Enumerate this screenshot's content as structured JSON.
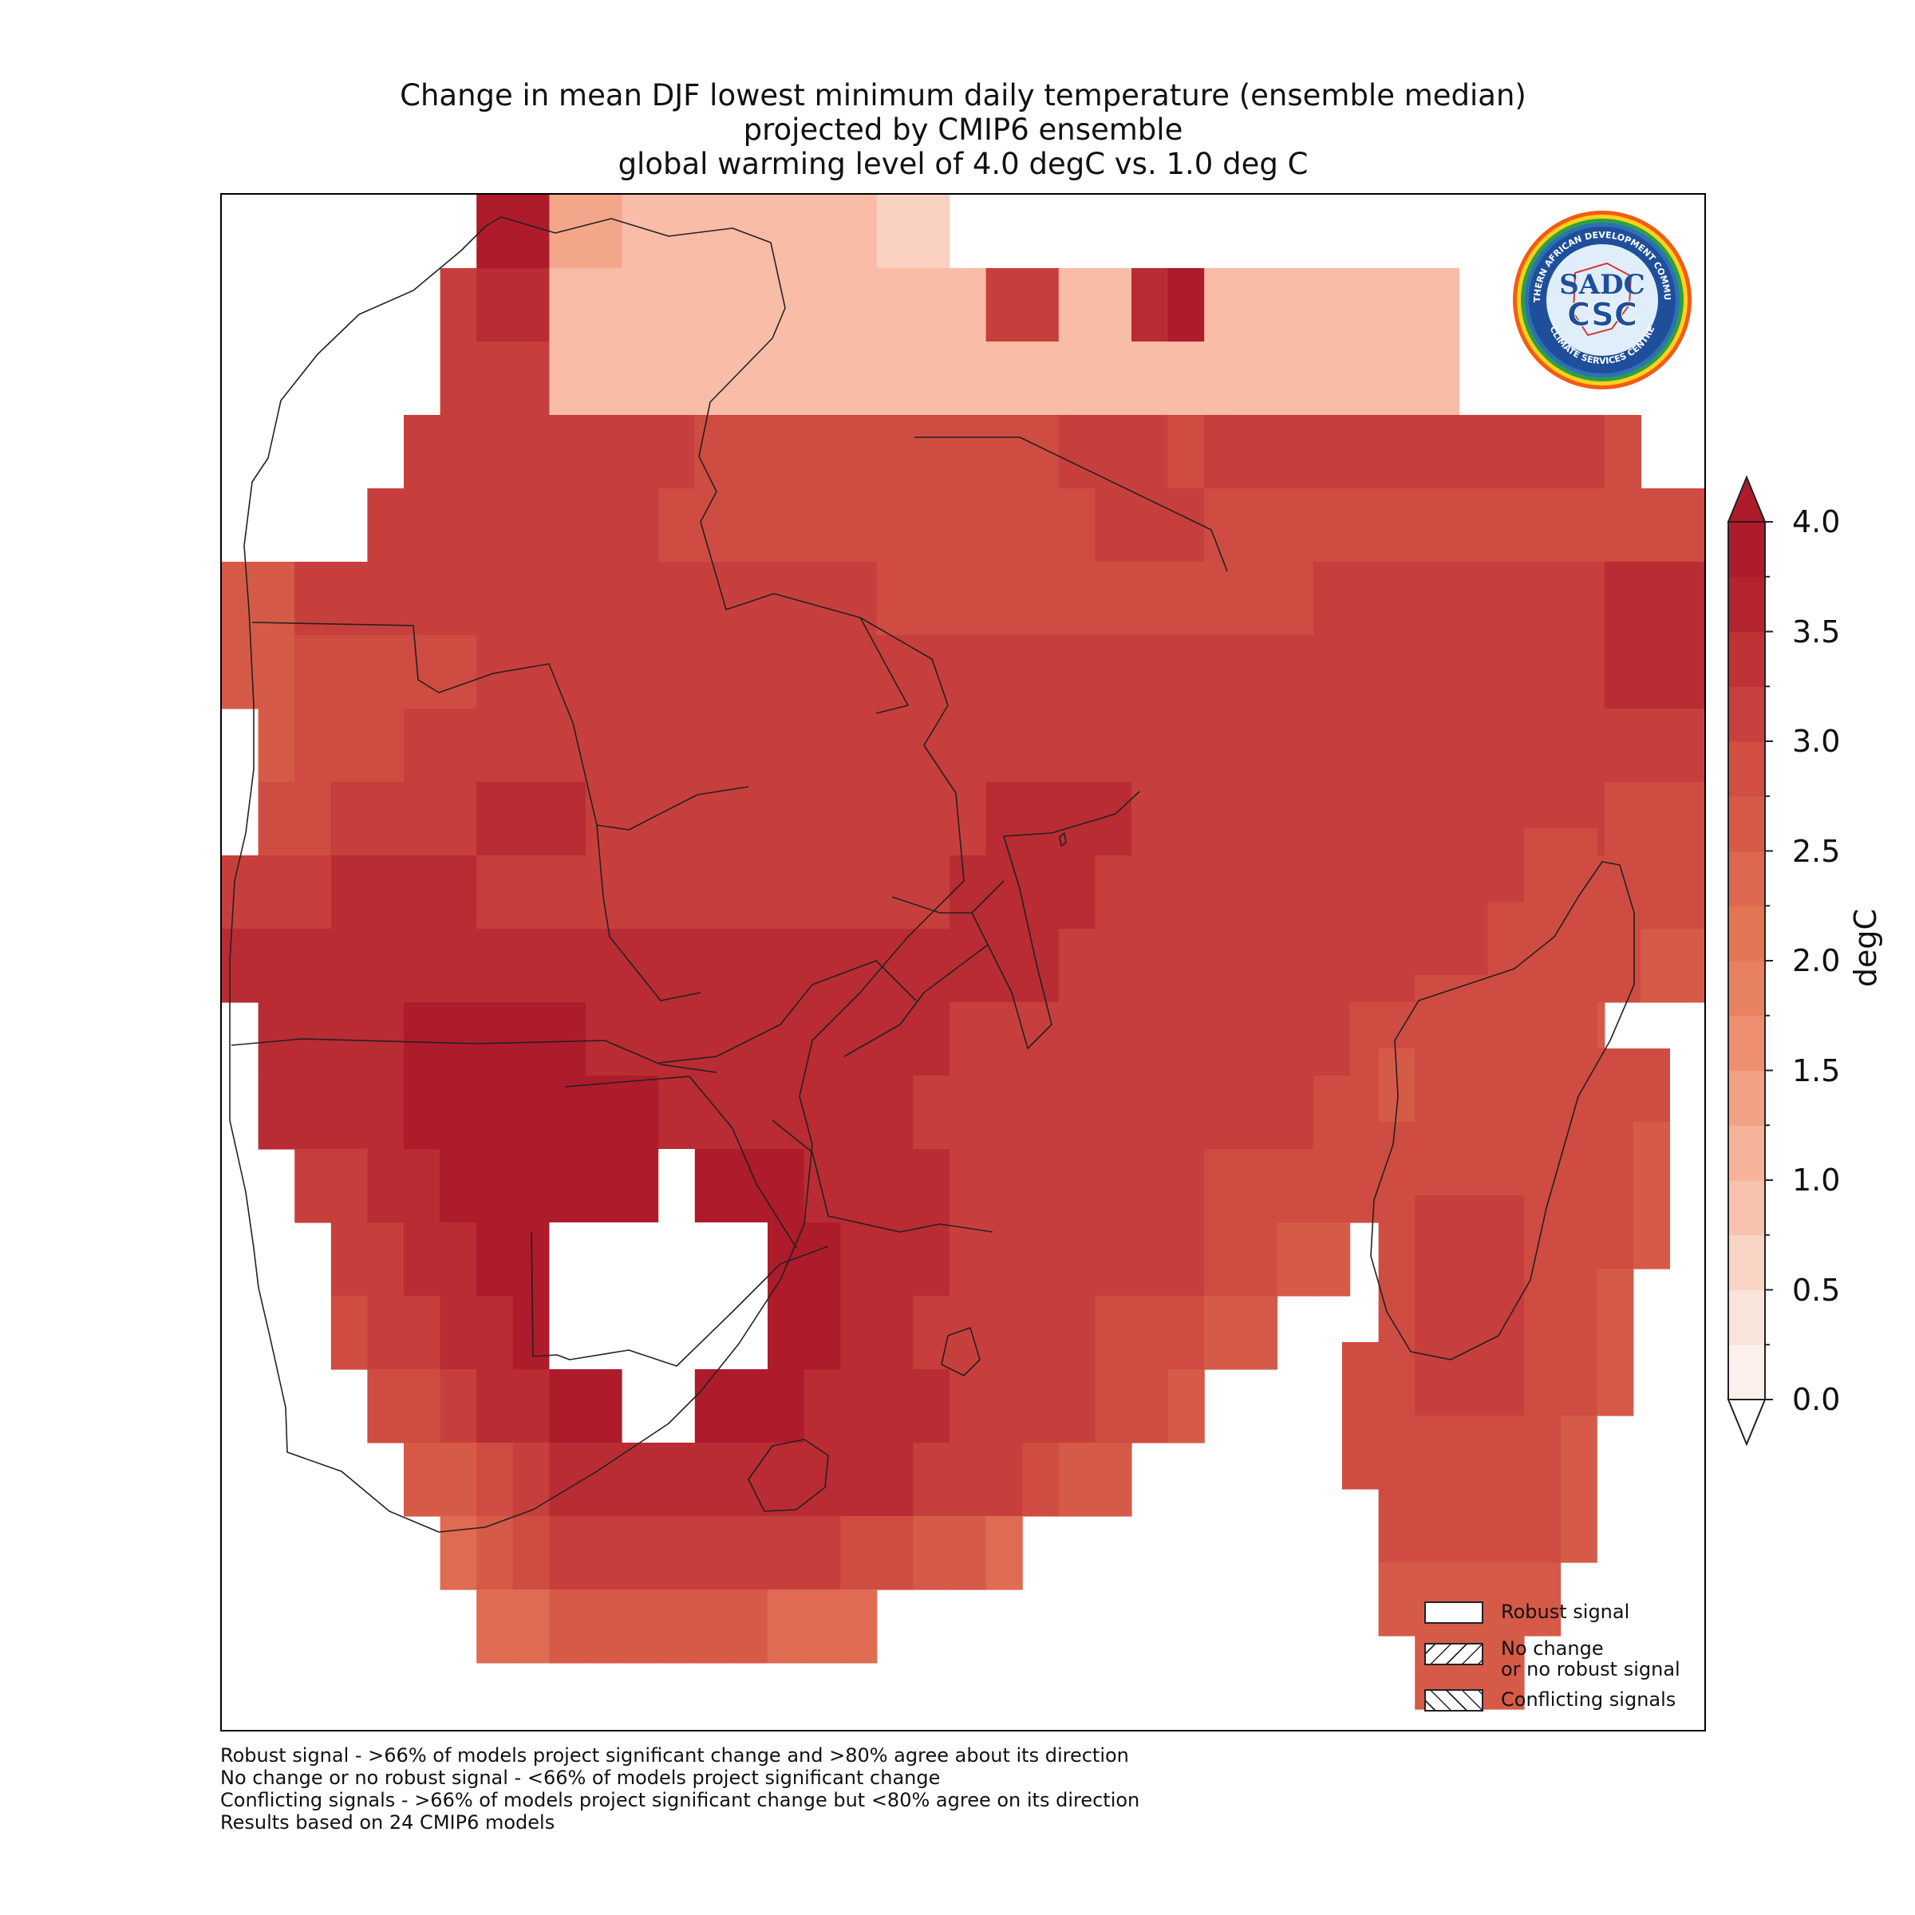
{
  "title_lines": [
    "Change in mean DJF lowest minimum daily temperature (ensemble median)",
    "projected by CMIP6 ensemble",
    "global warming level of 4.0 degC vs. 1.0 deg C"
  ],
  "logo": {
    "text_top": "SOUTHERN AFRICAN DEVELOPMENT COMMUNITY",
    "text_bottom": "CLIMATE SERVICES CENTRE",
    "monogram_1": "SADC",
    "monogram_2": "CSC"
  },
  "colorbar": {
    "unit": "degC",
    "min": 0.0,
    "max": 4.0,
    "extend": "both",
    "tick_labels": [
      "4.0",
      "3.5",
      "3.0",
      "2.5",
      "2.0",
      "1.5",
      "1.0",
      "0.5",
      "0.0"
    ],
    "colors": [
      "#fbf0ec",
      "#fbe3da",
      "#fad1c1",
      "#f8bca7",
      "#f4a68b",
      "#ee8e71",
      "#e67b60",
      "#df6b53",
      "#d65a48",
      "#cf4c42",
      "#c73f3c",
      "#b92c33",
      "#ae1b2b",
      "#ffffff"
    ]
  },
  "legend": {
    "items": [
      {
        "label": "Robust signal",
        "style": "empty"
      },
      {
        "label": "No change\nor no robust signal",
        "style": "hatch-forward"
      },
      {
        "label": "Conflicting signals",
        "style": "hatch-back"
      }
    ]
  },
  "footnotes": [
    "Robust signal - >66% of models project significant change and >80% agree about its direction",
    "No change or no robust signal - <66% of models project significant change",
    "Conflicting signals - >66% of models project significant change but <80% agree on its direction",
    "Results based on 24 CMIP6 models"
  ],
  "map_data": {
    "variable": "Change in mean DJF lowest minimum daily temperature (ensemble median)",
    "units": "degC",
    "region": "Southern Africa (SADC)",
    "grid_rows": [
      [
        7,
        [
          12,
          12,
          4,
          4,
          3,
          3,
          3,
          3,
          3,
          3,
          3,
          2,
          2
        ]
      ],
      [
        6,
        [
          10,
          11,
          11,
          3,
          3,
          3,
          3,
          3,
          3,
          3,
          3,
          3,
          3,
          3,
          3,
          10,
          10,
          3,
          3,
          11,
          12,
          3,
          3,
          3,
          3,
          3,
          3,
          3
        ]
      ],
      [
        6,
        [
          10,
          10,
          10,
          3,
          3,
          3,
          3,
          3,
          3,
          3,
          3,
          3,
          3,
          3,
          3,
          3,
          3,
          3,
          3,
          3,
          3,
          3,
          3,
          3,
          3,
          3,
          3,
          3
        ]
      ],
      [
        5,
        [
          10,
          10,
          10,
          10,
          10,
          10,
          10,
          10,
          9,
          9,
          9,
          9,
          9,
          9,
          9,
          9,
          9,
          9,
          10,
          10,
          10,
          9,
          10,
          10,
          10,
          10,
          10,
          10,
          10,
          10,
          10,
          10,
          10,
          9
        ]
      ],
      [
        4,
        [
          10,
          10,
          10,
          10,
          10,
          10,
          10,
          10,
          9,
          9,
          9,
          9,
          9,
          9,
          9,
          9,
          9,
          9,
          9,
          9,
          10,
          10,
          10,
          9,
          9,
          9,
          9,
          9,
          9,
          9,
          9,
          9,
          9,
          9,
          9,
          9,
          9,
          9,
          9,
          9
        ]
      ],
      [
        0,
        [
          8,
          8,
          10,
          10,
          10,
          10,
          10,
          10,
          10,
          10,
          10,
          10,
          10,
          10,
          10,
          10,
          10,
          10,
          9,
          9,
          9,
          9,
          9,
          9,
          9,
          9,
          9,
          9,
          9,
          9,
          10,
          10,
          10,
          10,
          10,
          10,
          10,
          10,
          11,
          11,
          11,
          11,
          9,
          8
        ]
      ],
      [
        0,
        [
          8,
          8,
          9,
          9,
          9,
          9,
          9,
          10,
          10,
          10,
          10,
          10,
          10,
          10,
          10,
          10,
          10,
          10,
          10,
          10,
          10,
          10,
          10,
          10,
          10,
          10,
          10,
          10,
          10,
          10,
          10,
          10,
          10,
          10,
          10,
          10,
          10,
          10,
          11,
          11,
          11,
          11,
          9,
          9,
          9,
          8
        ]
      ],
      [
        1,
        [
          8,
          9,
          9,
          9,
          10,
          10,
          10,
          10,
          10,
          10,
          10,
          10,
          10,
          10,
          10,
          10,
          10,
          10,
          10,
          10,
          10,
          10,
          10,
          10,
          10,
          10,
          10,
          10,
          10,
          10,
          10,
          10,
          10,
          10,
          10,
          10,
          10,
          10,
          10,
          10,
          9,
          9,
          9,
          8,
          8
        ]
      ],
      [
        1,
        [
          9,
          9,
          10,
          10,
          10,
          10,
          11,
          11,
          11,
          10,
          10,
          10,
          10,
          10,
          10,
          10,
          10,
          10,
          10,
          10,
          11,
          11,
          11,
          11,
          10,
          10,
          10,
          10,
          10,
          10,
          10,
          10,
          10,
          10,
          10,
          10,
          10,
          9,
          9,
          9,
          8,
          8,
          8
        ]
      ],
      [
        0,
        [
          10,
          10,
          10,
          11,
          11,
          11,
          11,
          10,
          10,
          10,
          10,
          10,
          10,
          10,
          10,
          10,
          10,
          10,
          10,
          10,
          11,
          11,
          11,
          11,
          10,
          10,
          10,
          10,
          10,
          10,
          10,
          10,
          10,
          10,
          10,
          10,
          10,
          9,
          9,
          9,
          9,
          8,
          8,
          8
        ]
      ],
      [
        0,
        [
          11,
          11,
          11,
          11,
          11,
          11,
          11,
          11,
          11,
          11,
          11,
          11,
          11,
          11,
          11,
          11,
          11,
          11,
          11,
          11,
          11,
          11,
          11,
          10,
          10,
          10,
          10,
          10,
          10,
          10,
          10,
          10,
          10,
          10,
          10,
          10,
          9,
          9,
          9,
          8,
          8,
          8,
          8
        ]
      ],
      [
        1,
        [
          11,
          11,
          11,
          11,
          12,
          12,
          12,
          12,
          12,
          11,
          11,
          11,
          11,
          11,
          11,
          11,
          11,
          11,
          11,
          10,
          10,
          10,
          10,
          10,
          10,
          10,
          10,
          10,
          10,
          10,
          9,
          9,
          9,
          9,
          8,
          8,
          8
        ]
      ],
      [
        1,
        [
          11,
          11,
          11,
          11,
          12,
          12,
          12,
          12,
          12,
          12,
          12,
          11,
          11,
          11,
          11,
          11,
          11,
          11,
          10,
          10,
          10,
          10,
          10,
          10,
          10,
          10,
          10,
          10,
          10,
          9,
          9,
          9,
          8,
          8
        ]
      ],
      [
        2,
        [
          10,
          10,
          11,
          11,
          12,
          12,
          12,
          12,
          12,
          12,
          13,
          12,
          12,
          12,
          11,
          11,
          11,
          11,
          10,
          10,
          10,
          10,
          10,
          10,
          10,
          9,
          9,
          9,
          9,
          9,
          8,
          8
        ]
      ],
      [
        3,
        [
          10,
          10,
          11,
          11,
          12,
          12,
          13,
          13,
          13,
          13,
          13,
          13,
          12,
          12,
          11,
          11,
          11,
          10,
          10,
          10,
          10,
          10,
          10,
          10,
          9,
          9,
          8,
          8
        ]
      ],
      [
        3,
        [
          9,
          10,
          10,
          11,
          11,
          12,
          13,
          13,
          13,
          13,
          13,
          13,
          12,
          12,
          11,
          11,
          10,
          10,
          10,
          10,
          10,
          9,
          9,
          9,
          8,
          8
        ]
      ],
      [
        4,
        [
          9,
          9,
          10,
          11,
          11,
          12,
          12,
          13,
          13,
          12,
          12,
          12,
          11,
          11,
          11,
          11,
          10,
          10,
          10,
          10,
          9,
          9,
          8
        ]
      ],
      [
        5,
        [
          8,
          8,
          9,
          10,
          11,
          11,
          11,
          11,
          11,
          11,
          11,
          11,
          11,
          11,
          10,
          10,
          10,
          9,
          8,
          8
        ]
      ],
      [
        6,
        [
          7,
          8,
          9,
          10,
          10,
          10,
          10,
          10,
          10,
          10,
          10,
          9,
          9,
          8,
          8,
          7
        ]
      ],
      [
        7,
        [
          7,
          7,
          8,
          8,
          8,
          8,
          8,
          8,
          7,
          7,
          7
        ]
      ]
    ],
    "madagascar_rows": [
      [
        5,
        [
          9,
          9
        ]
      ],
      [
        4,
        [
          9,
          9,
          9
        ]
      ],
      [
        2,
        [
          9,
          9,
          9,
          9,
          9
        ]
      ],
      [
        1,
        [
          8,
          9,
          9,
          9,
          9,
          9,
          9,
          9
        ]
      ],
      [
        1,
        [
          9,
          9,
          9,
          9,
          9,
          9,
          9,
          8
        ]
      ],
      [
        1,
        [
          9,
          10,
          10,
          10,
          9,
          9,
          9,
          8
        ]
      ],
      [
        1,
        [
          9,
          10,
          10,
          10,
          9,
          9,
          8
        ]
      ],
      [
        0,
        [
          9,
          9,
          10,
          10,
          10,
          9,
          9,
          8
        ]
      ],
      [
        0,
        [
          9,
          9,
          9,
          9,
          9,
          9,
          8
        ]
      ],
      [
        1,
        [
          9,
          9,
          9,
          9,
          9,
          8
        ]
      ],
      [
        1,
        [
          8,
          8,
          8,
          8,
          8
        ]
      ],
      [
        2,
        [
          8,
          8,
          8
        ]
      ]
    ]
  }
}
